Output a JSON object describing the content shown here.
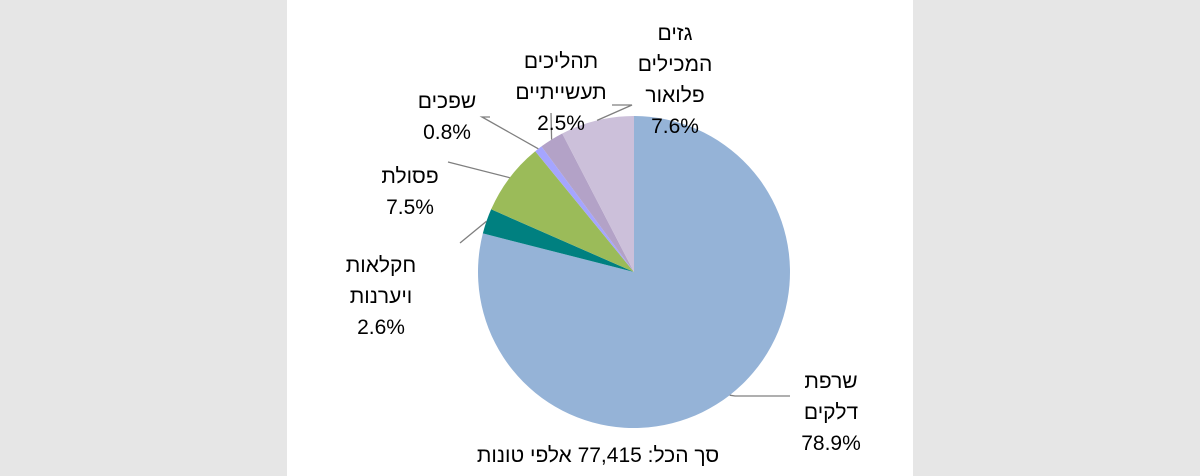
{
  "chart_data": {
    "type": "pie",
    "slices": [
      {
        "label_lines": [
          "שרפת",
          "דלקים"
        ],
        "value": 78.9,
        "value_label": "78.9%",
        "color": "#95b3d7"
      },
      {
        "label_lines": [
          "חקלאות",
          "ויערנות"
        ],
        "value": 2.6,
        "value_label": "2.6%",
        "color": "#008080"
      },
      {
        "label_lines": [
          "פסולת"
        ],
        "value": 7.5,
        "value_label": "7.5%",
        "color": "#9bbb59"
      },
      {
        "label_lines": [
          "שפכים"
        ],
        "value": 0.8,
        "value_label": "0.8%",
        "color": "#a5a5ff"
      },
      {
        "label_lines": [
          "תהליכים",
          "תעשייתיים"
        ],
        "value": 2.5,
        "value_label": "2.5%",
        "color": "#b3a2c7"
      },
      {
        "label_lines": [
          "גזים",
          "המכילים",
          "פלואור"
        ],
        "value": 7.6,
        "value_label": "7.6%",
        "color": "#ccc0da"
      }
    ],
    "total_text": "סך הכל: 77,415 אלפי טונות"
  }
}
